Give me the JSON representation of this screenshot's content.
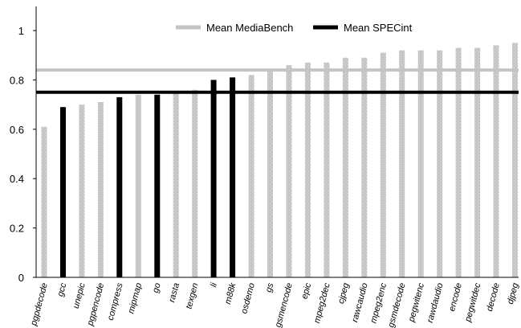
{
  "chart_data": {
    "type": "bar",
    "title": "",
    "xlabel": "",
    "ylabel": "",
    "ylim": [
      0,
      1
    ],
    "yticks": [
      0,
      0.2,
      0.4,
      0.6,
      0.8,
      1
    ],
    "ytick_labels": [
      "0",
      "0.2",
      "0.4",
      "0.6",
      "0.8",
      "1"
    ],
    "grid": false,
    "legend_position": "top-center",
    "categories": [
      "pgpdecode",
      "gcc",
      "unepic",
      "pgpencode",
      "compress",
      "mipmap",
      "go",
      "rasta",
      "texgen",
      "li",
      "m88k",
      "osdemo",
      "gs",
      "gsmencode",
      "epic",
      "mpeg2dec",
      "cjpeg",
      "rawcaudio",
      "mpeg2enc",
      "gsmdecode",
      "pegwitenc",
      "rawdaudio",
      "encode",
      "pegwitdec",
      "decode",
      "djpeg"
    ],
    "values": [
      0.61,
      0.69,
      0.7,
      0.71,
      0.73,
      0.74,
      0.74,
      0.75,
      0.76,
      0.8,
      0.81,
      0.82,
      0.84,
      0.86,
      0.87,
      0.87,
      0.89,
      0.89,
      0.91,
      0.92,
      0.92,
      0.92,
      0.93,
      0.93,
      0.94,
      0.95
    ],
    "suite": [
      "MediaBench",
      "SPECint",
      "MediaBench",
      "MediaBench",
      "SPECint",
      "MediaBench",
      "SPECint",
      "MediaBench",
      "MediaBench",
      "SPECint",
      "SPECint",
      "MediaBench",
      "MediaBench",
      "MediaBench",
      "MediaBench",
      "MediaBench",
      "MediaBench",
      "MediaBench",
      "MediaBench",
      "MediaBench",
      "MediaBench",
      "MediaBench",
      "MediaBench",
      "MediaBench",
      "MediaBench",
      "MediaBench"
    ],
    "series": [
      {
        "name": "Mean MediaBench",
        "type": "hline",
        "value": 0.84,
        "color": "#c4c4c4"
      },
      {
        "name": "Mean SPECint",
        "type": "hline",
        "value": 0.75,
        "color": "#000000"
      }
    ],
    "colors": {
      "MediaBench": "#c4c4c4",
      "SPECint": "#000000"
    }
  }
}
